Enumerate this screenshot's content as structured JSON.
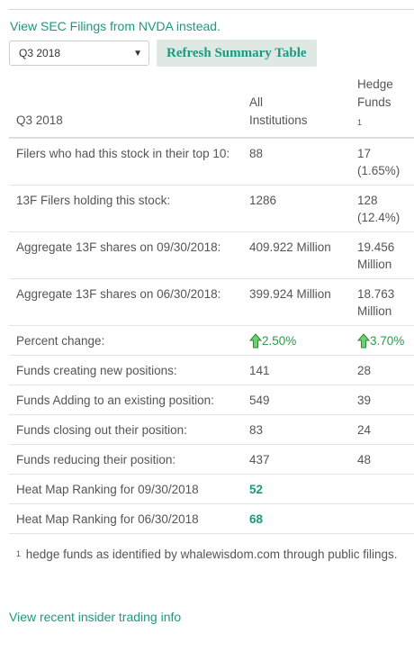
{
  "sec_link": "View SEC Filings from NVDA instead.",
  "quarter_select": {
    "value": "Q3 2018"
  },
  "refresh_button": "Refresh Summary Table",
  "table": {
    "header": {
      "period": "Q3 2018",
      "col_all_line1": "All",
      "col_all_line2": "Institutions",
      "col_hf": "Hedge Funds",
      "col_hf_sup": "1"
    },
    "rows": [
      {
        "label": "Filers who had this stock in their top 10:",
        "all": "88",
        "hf": "17 (1.65%)"
      },
      {
        "label": "13F Filers holding this stock:",
        "all": "1286",
        "hf": "128 (12.4%)"
      },
      {
        "label": "Aggregate 13F shares on 09/30/2018:",
        "all": "409.922 Million",
        "hf": "19.456 Million"
      },
      {
        "label": "Aggregate 13F shares on 06/30/2018:",
        "all": "399.924 Million",
        "hf": "18.763 Million"
      },
      {
        "label": "Percent change:",
        "all": "2.50%",
        "hf": "3.70%",
        "trend": "up-arrow-icon"
      },
      {
        "label": "Funds creating new positions:",
        "all": "141",
        "hf": "28"
      },
      {
        "label": "Funds Adding to an existing position:",
        "all": "549",
        "hf": "39"
      },
      {
        "label": "Funds closing out their position:",
        "all": "83",
        "hf": "24"
      },
      {
        "label": "Funds reducing their position:",
        "all": "437",
        "hf": "48"
      },
      {
        "label": "Heat Map Ranking for 09/30/2018",
        "all": "52",
        "hf": ""
      },
      {
        "label": "Heat Map Ranking for 06/30/2018",
        "all": "68",
        "hf": ""
      }
    ]
  },
  "footnote": {
    "marker": "1",
    "text": "hedge funds as identified by whalewisdom.com through public filings."
  },
  "insider_link": "View recent insider trading info",
  "colors": {
    "link": "#1a9a80",
    "positive": "#2c9a4a",
    "button_bg": "#dfe8e3",
    "text": "#555555"
  }
}
